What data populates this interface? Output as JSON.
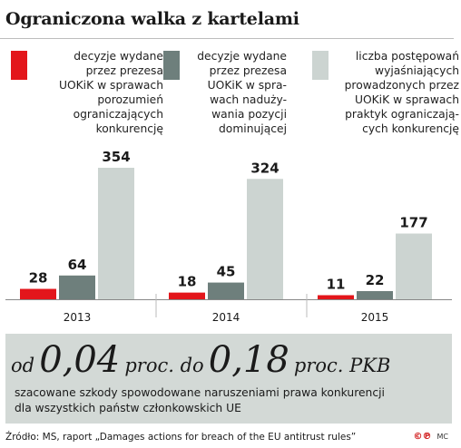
{
  "header": {
    "title": "Ograniczona walka z kartelami"
  },
  "colors": {
    "series1": "#e3161b",
    "series2": "#6e7f7c",
    "series3": "#ccd4d1",
    "box": "#d3d9d6"
  },
  "legend": [
    {
      "lines": [
        "decyzje wydane",
        "przez prezesa",
        "UOKiK w sprawach",
        "porozumień",
        "ograniczających",
        "konkurencję"
      ]
    },
    {
      "lines": [
        "decyzje wydane",
        "przez prezesa",
        "UOKiK w spra-",
        "wach naduży-",
        "wania pozycji",
        "dominującej"
      ]
    },
    {
      "lines": [
        "liczba postępowań",
        "wyjaśniających",
        "prowadzonych przez",
        "UOKiK w sprawach",
        "praktyk ograniczają-",
        "cych konkurencję"
      ]
    }
  ],
  "chart_data": {
    "type": "bar",
    "categories": [
      "2013",
      "2014",
      "2015"
    ],
    "series": [
      {
        "name": "decyzje wydane przez prezesa UOKiK w sprawach porozumień ograniczających konkurencję",
        "values": [
          28,
          18,
          11
        ]
      },
      {
        "name": "decyzje wydane przez prezesa UOKiK w sprawach nadużywania pozycji dominującej",
        "values": [
          64,
          45,
          22
        ]
      },
      {
        "name": "liczba postępowań wyjaśniających prowadzonych przez UOKiK w sprawach praktyk ograniczających konkurencję",
        "values": [
          354,
          324,
          177
        ]
      }
    ],
    "ylim": [
      0,
      354
    ],
    "grid": false,
    "legend_position": "top"
  },
  "summary": {
    "prefix": "od",
    "value_from": "0,04",
    "middle": "proc. do",
    "value_to": "0,18",
    "suffix": "proc. PKB",
    "description_lines": [
      "szacowane szkody spowodowane naruszeniami prawa konkurencji",
      "dla wszystkich państw członkowskich UE"
    ]
  },
  "footer": {
    "source": "Źródło: MS, raport „Damages actions for breach of the EU antitrust rules”",
    "logo": "©℗",
    "initials": "MC"
  }
}
